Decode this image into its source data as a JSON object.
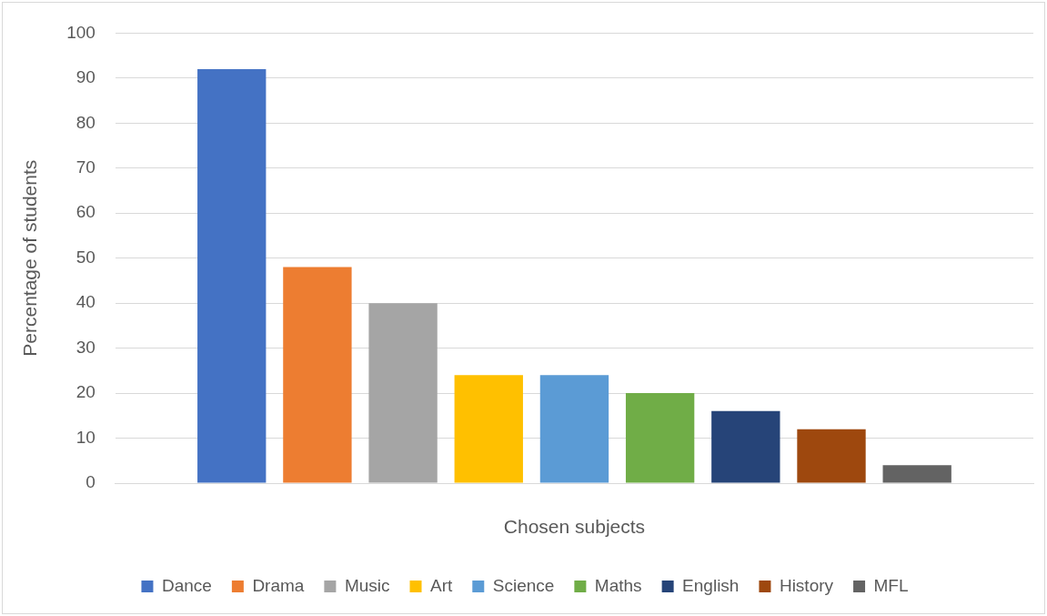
{
  "chart_data": {
    "type": "bar",
    "xlabel": "Chosen subjects",
    "ylabel": "Percentage of students",
    "categories": [
      null
    ],
    "series": [
      {
        "name": "Dance",
        "color": "#4472c4",
        "values": [
          92
        ]
      },
      {
        "name": "Drama",
        "color": "#ed7d31",
        "values": [
          48
        ]
      },
      {
        "name": "Music",
        "color": "#a5a5a5",
        "values": [
          40
        ]
      },
      {
        "name": "Art",
        "color": "#ffc000",
        "values": [
          24
        ]
      },
      {
        "name": "Science",
        "color": "#5b9bd5",
        "values": [
          24
        ]
      },
      {
        "name": "Maths",
        "color": "#70ad47",
        "values": [
          20
        ]
      },
      {
        "name": "English",
        "color": "#264478",
        "values": [
          16
        ]
      },
      {
        "name": "History",
        "color": "#9e480e",
        "values": [
          12
        ]
      },
      {
        "name": "MFL",
        "color": "#636363",
        "values": [
          4
        ]
      }
    ],
    "ylim": [
      0,
      100
    ],
    "yticks": [
      0,
      10,
      20,
      30,
      40,
      50,
      60,
      70,
      80,
      90,
      100
    ],
    "grid": "y",
    "legend": "bottom"
  }
}
